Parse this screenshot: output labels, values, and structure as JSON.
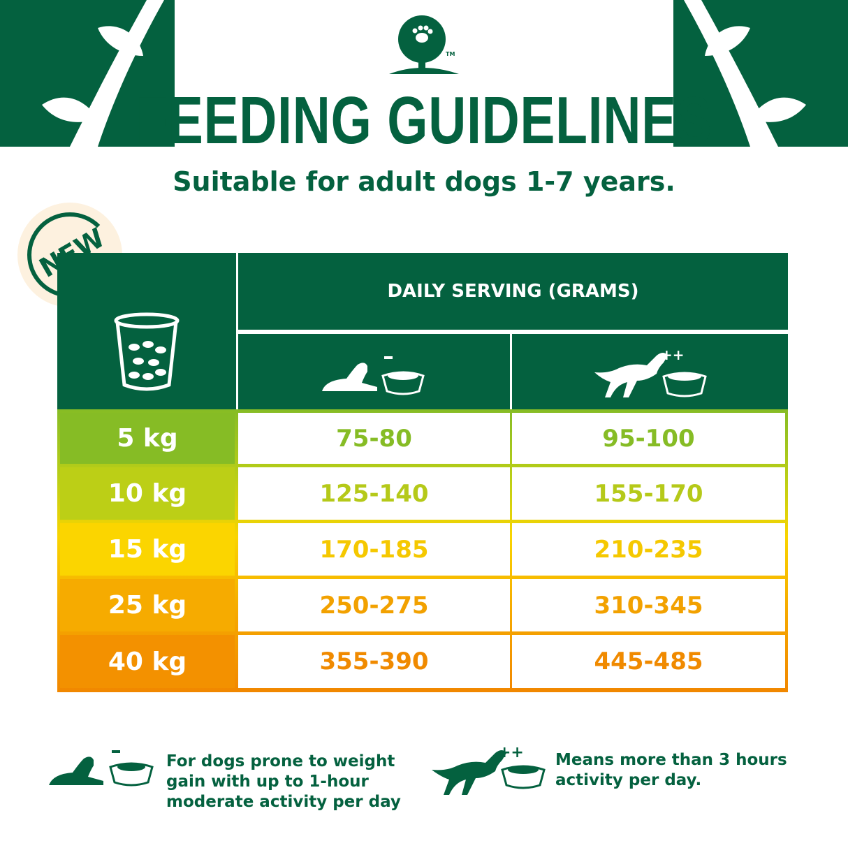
{
  "header": {
    "title": "FEEDING GUIDELINES",
    "subtitle": "Suitable for adult dogs 1-7 years.",
    "logo_tm": "TM"
  },
  "badge": {
    "label": "NEW"
  },
  "table": {
    "column_header": "DAILY SERVING (GRAMS)",
    "low_activity_icon": "resting-dog-bowl-minus",
    "low_activity_mark": "-",
    "high_activity_icon": "jumping-dog-bowl-plusplus",
    "high_activity_mark": "++",
    "rows": [
      {
        "weight": "5 kg",
        "low": "75-80",
        "high": "95-100",
        "color": "#86bc25",
        "text_color": "#86bc25"
      },
      {
        "weight": "10 kg",
        "low": "125-140",
        "high": "155-170",
        "color": "#bccf16",
        "text_color": "#b5c919"
      },
      {
        "weight": "15 kg",
        "low": "170-185",
        "high": "210-235",
        "color": "#fbd500",
        "text_color": "#f5c800"
      },
      {
        "weight": "25 kg",
        "low": "250-275",
        "high": "310-345",
        "color": "#f6ab00",
        "text_color": "#f2a100"
      },
      {
        "weight": "40 kg",
        "low": "355-390",
        "high": "445-485",
        "color": "#f39100",
        "text_color": "#f08a00"
      }
    ]
  },
  "legend": {
    "low_mark": "-",
    "low_text": "For dogs prone to weight gain with up to 1-hour moderate activity per day",
    "high_mark": "++",
    "high_text": "Means more than 3 hours activity per day."
  },
  "colors": {
    "brand_green": "#04613f"
  }
}
